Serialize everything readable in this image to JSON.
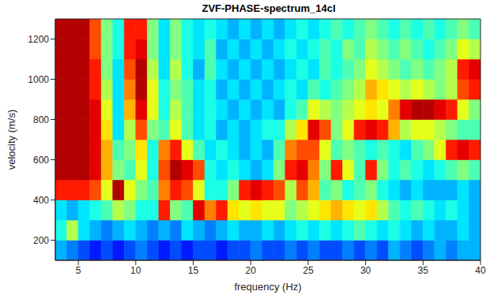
{
  "chart_data": {
    "type": "heatmap",
    "title": "ZVF-PHASE-spectrum_14cl",
    "x_label": "frequency (Hz)",
    "y_label": "velocity (m/s)",
    "xlim": [
      3,
      40
    ],
    "ylim": [
      100,
      1300
    ],
    "xticks": [
      5,
      10,
      15,
      20,
      25,
      30,
      35,
      40
    ],
    "yticks": [
      200,
      400,
      600,
      800,
      1000,
      1200
    ],
    "x_edges": [
      3,
      4,
      5,
      6,
      7,
      8,
      9,
      10,
      11,
      12,
      13,
      14,
      15,
      16,
      17,
      18,
      19,
      20,
      21,
      22,
      23,
      24,
      25,
      26,
      27,
      28,
      29,
      30,
      31,
      32,
      33,
      34,
      35,
      36,
      37,
      38,
      39,
      40
    ],
    "y_edges": [
      100,
      200,
      300,
      400,
      500,
      600,
      700,
      800,
      900,
      1000,
      1100,
      1200,
      1300
    ],
    "cells": [
      [
        0.3,
        0.25,
        0.2,
        0.15,
        0.2,
        0.15,
        0.2,
        0.25,
        0.2,
        0.15,
        0.2,
        0.15,
        0.2,
        0.2,
        0.15,
        0.2,
        0.2,
        0.25,
        0.2,
        0.2,
        0.25,
        0.2,
        0.25,
        0.2,
        0.2,
        0.25,
        0.2,
        0.25,
        0.2,
        0.3,
        0.25,
        0.2,
        0.25,
        0.3,
        0.25,
        0.3,
        0.3
      ],
      [
        0.4,
        0.55,
        0.35,
        0.3,
        0.25,
        0.3,
        0.35,
        0.3,
        0.25,
        0.3,
        0.25,
        0.35,
        0.3,
        0.25,
        0.3,
        0.35,
        0.3,
        0.3,
        0.35,
        0.3,
        0.35,
        0.4,
        0.35,
        0.4,
        0.35,
        0.4,
        0.45,
        0.4,
        0.35,
        0.4,
        0.35,
        0.3,
        0.35,
        0.3,
        0.3,
        0.35,
        0.3
      ],
      [
        0.35,
        0.3,
        0.35,
        0.4,
        0.45,
        0.55,
        0.5,
        0.4,
        0.4,
        0.85,
        0.5,
        0.45,
        0.9,
        0.75,
        0.85,
        0.65,
        0.6,
        0.65,
        0.6,
        0.6,
        0.5,
        0.55,
        0.6,
        0.65,
        0.7,
        0.65,
        0.6,
        0.65,
        0.55,
        0.45,
        0.4,
        0.45,
        0.4,
        0.35,
        0.4,
        0.35,
        0.3
      ],
      [
        0.85,
        0.85,
        0.85,
        0.8,
        0.6,
        0.95,
        0.6,
        0.5,
        0.45,
        0.75,
        0.85,
        0.8,
        0.6,
        0.4,
        0.4,
        0.5,
        0.85,
        0.9,
        0.85,
        0.8,
        0.55,
        0.8,
        0.7,
        0.45,
        0.5,
        0.4,
        0.45,
        0.5,
        0.4,
        0.35,
        0.3,
        0.35,
        0.3,
        0.3,
        0.3,
        0.35,
        0.3
      ],
      [
        0.95,
        0.95,
        0.95,
        0.9,
        0.7,
        0.5,
        0.45,
        0.6,
        0.4,
        0.8,
        0.95,
        0.9,
        0.8,
        0.4,
        0.35,
        0.4,
        0.35,
        0.3,
        0.35,
        0.5,
        0.85,
        0.9,
        0.75,
        0.5,
        0.85,
        0.6,
        0.45,
        0.85,
        0.5,
        0.4,
        0.45,
        0.4,
        0.35,
        0.4,
        0.45,
        0.5,
        0.45
      ],
      [
        0.95,
        0.95,
        0.95,
        0.9,
        0.7,
        0.45,
        0.5,
        0.65,
        0.4,
        0.75,
        0.85,
        0.6,
        0.45,
        0.35,
        0.4,
        0.35,
        0.3,
        0.35,
        0.3,
        0.45,
        0.75,
        0.8,
        0.8,
        0.6,
        0.45,
        0.5,
        0.45,
        0.4,
        0.45,
        0.4,
        0.35,
        0.45,
        0.5,
        0.6,
        0.85,
        0.9,
        0.85
      ],
      [
        0.95,
        0.95,
        0.95,
        0.9,
        0.65,
        0.35,
        0.55,
        0.8,
        0.5,
        0.45,
        0.6,
        0.45,
        0.35,
        0.4,
        0.3,
        0.35,
        0.3,
        0.35,
        0.4,
        0.4,
        0.55,
        0.65,
        0.9,
        0.8,
        0.5,
        0.6,
        0.85,
        0.9,
        0.85,
        0.7,
        0.55,
        0.6,
        0.6,
        0.55,
        0.5,
        0.45,
        0.45
      ],
      [
        0.95,
        0.95,
        0.95,
        0.9,
        0.6,
        0.35,
        0.7,
        0.9,
        0.6,
        0.4,
        0.55,
        0.45,
        0.35,
        0.4,
        0.35,
        0.3,
        0.35,
        0.3,
        0.35,
        0.3,
        0.4,
        0.45,
        0.6,
        0.55,
        0.5,
        0.55,
        0.6,
        0.65,
        0.6,
        0.75,
        0.9,
        0.95,
        0.95,
        0.9,
        0.85,
        0.6,
        0.5
      ],
      [
        0.95,
        0.95,
        0.95,
        0.85,
        0.55,
        0.35,
        0.75,
        0.95,
        0.6,
        0.4,
        0.5,
        0.45,
        0.35,
        0.4,
        0.3,
        0.35,
        0.3,
        0.35,
        0.3,
        0.35,
        0.4,
        0.35,
        0.45,
        0.4,
        0.45,
        0.5,
        0.55,
        0.7,
        0.65,
        0.6,
        0.55,
        0.6,
        0.55,
        0.5,
        0.55,
        0.8,
        0.85
      ],
      [
        0.95,
        0.95,
        0.95,
        0.85,
        0.5,
        0.35,
        0.8,
        0.95,
        0.55,
        0.35,
        0.55,
        0.4,
        0.3,
        0.45,
        0.35,
        0.3,
        0.35,
        0.3,
        0.35,
        0.3,
        0.35,
        0.4,
        0.35,
        0.45,
        0.4,
        0.45,
        0.5,
        0.6,
        0.55,
        0.5,
        0.45,
        0.5,
        0.45,
        0.5,
        0.55,
        0.85,
        0.9
      ],
      [
        0.95,
        0.95,
        0.95,
        0.8,
        0.5,
        0.4,
        0.85,
        0.9,
        0.5,
        0.35,
        0.5,
        0.4,
        0.35,
        0.45,
        0.3,
        0.35,
        0.3,
        0.35,
        0.3,
        0.35,
        0.4,
        0.35,
        0.4,
        0.45,
        0.4,
        0.5,
        0.45,
        0.55,
        0.5,
        0.45,
        0.5,
        0.45,
        0.4,
        0.45,
        0.5,
        0.6,
        0.55
      ],
      [
        0.95,
        0.95,
        0.95,
        0.8,
        0.5,
        0.4,
        0.85,
        0.85,
        0.5,
        0.35,
        0.5,
        0.4,
        0.35,
        0.4,
        0.35,
        0.3,
        0.35,
        0.3,
        0.35,
        0.3,
        0.35,
        0.4,
        0.35,
        0.4,
        0.45,
        0.4,
        0.45,
        0.5,
        0.45,
        0.4,
        0.45,
        0.4,
        0.45,
        0.4,
        0.45,
        0.5,
        0.45
      ]
    ]
  }
}
